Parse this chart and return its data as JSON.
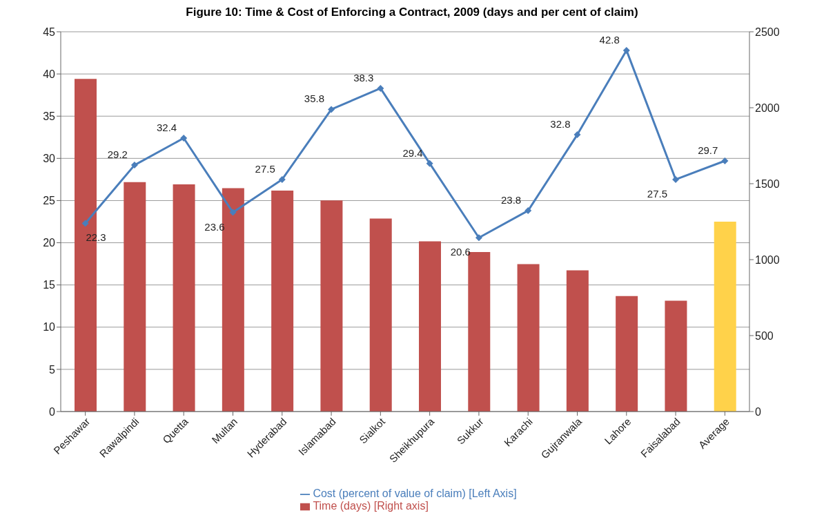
{
  "chart_data": {
    "type": "bar",
    "title": "Figure 10: Time & Cost of Enforcing a Contract, 2009 (days and per cent of claim)",
    "categories": [
      "Peshawar",
      "Rawalpindi",
      "Quetta",
      "Multan",
      "Hyderabad",
      "Islamabad",
      "Sialkot",
      "Sheikhupura",
      "Sukkur",
      "Karachi",
      "Gujranwala",
      "Lahore",
      "Faisalabad",
      "Average"
    ],
    "series": [
      {
        "name": "Time (days) [Right axis]",
        "axis": "y2",
        "color": "#c0504d",
        "colors": [
          "#c0504d",
          "#c0504d",
          "#c0504d",
          "#c0504d",
          "#c0504d",
          "#c0504d",
          "#c0504d",
          "#c0504d",
          "#c0504d",
          "#c0504d",
          "#c0504d",
          "#c0504d",
          "#c0504d",
          "#ffd24a"
        ],
        "values": [
          2190,
          1510,
          1495,
          1470,
          1455,
          1390,
          1270,
          1120,
          1050,
          970,
          930,
          760,
          730,
          1250
        ]
      },
      {
        "name": "Cost (percent of value of claim) [Left Axis]",
        "type": "line",
        "color": "#4a7ebb",
        "marker": "diamond",
        "values": [
          22.3,
          29.2,
          32.4,
          23.6,
          27.5,
          35.8,
          38.3,
          29.4,
          20.6,
          23.8,
          32.8,
          42.8,
          27.5,
          29.7
        ],
        "value_labels": [
          "22.3",
          "29.2",
          "32.4",
          "23.6",
          "27.5",
          "35.8",
          "38.3",
          "29.4",
          "20.6",
          "23.8",
          "32.8",
          "42.8",
          "27.5",
          "29.7"
        ]
      }
    ],
    "ylim": [
      0,
      45
    ],
    "yticks": [
      0,
      5,
      10,
      15,
      20,
      25,
      30,
      35,
      40,
      45
    ],
    "y2lim": [
      0,
      2500
    ],
    "y2ticks": [
      0,
      500,
      1000,
      1500,
      2000,
      2500
    ],
    "grid": "y",
    "legend": "bottom"
  }
}
